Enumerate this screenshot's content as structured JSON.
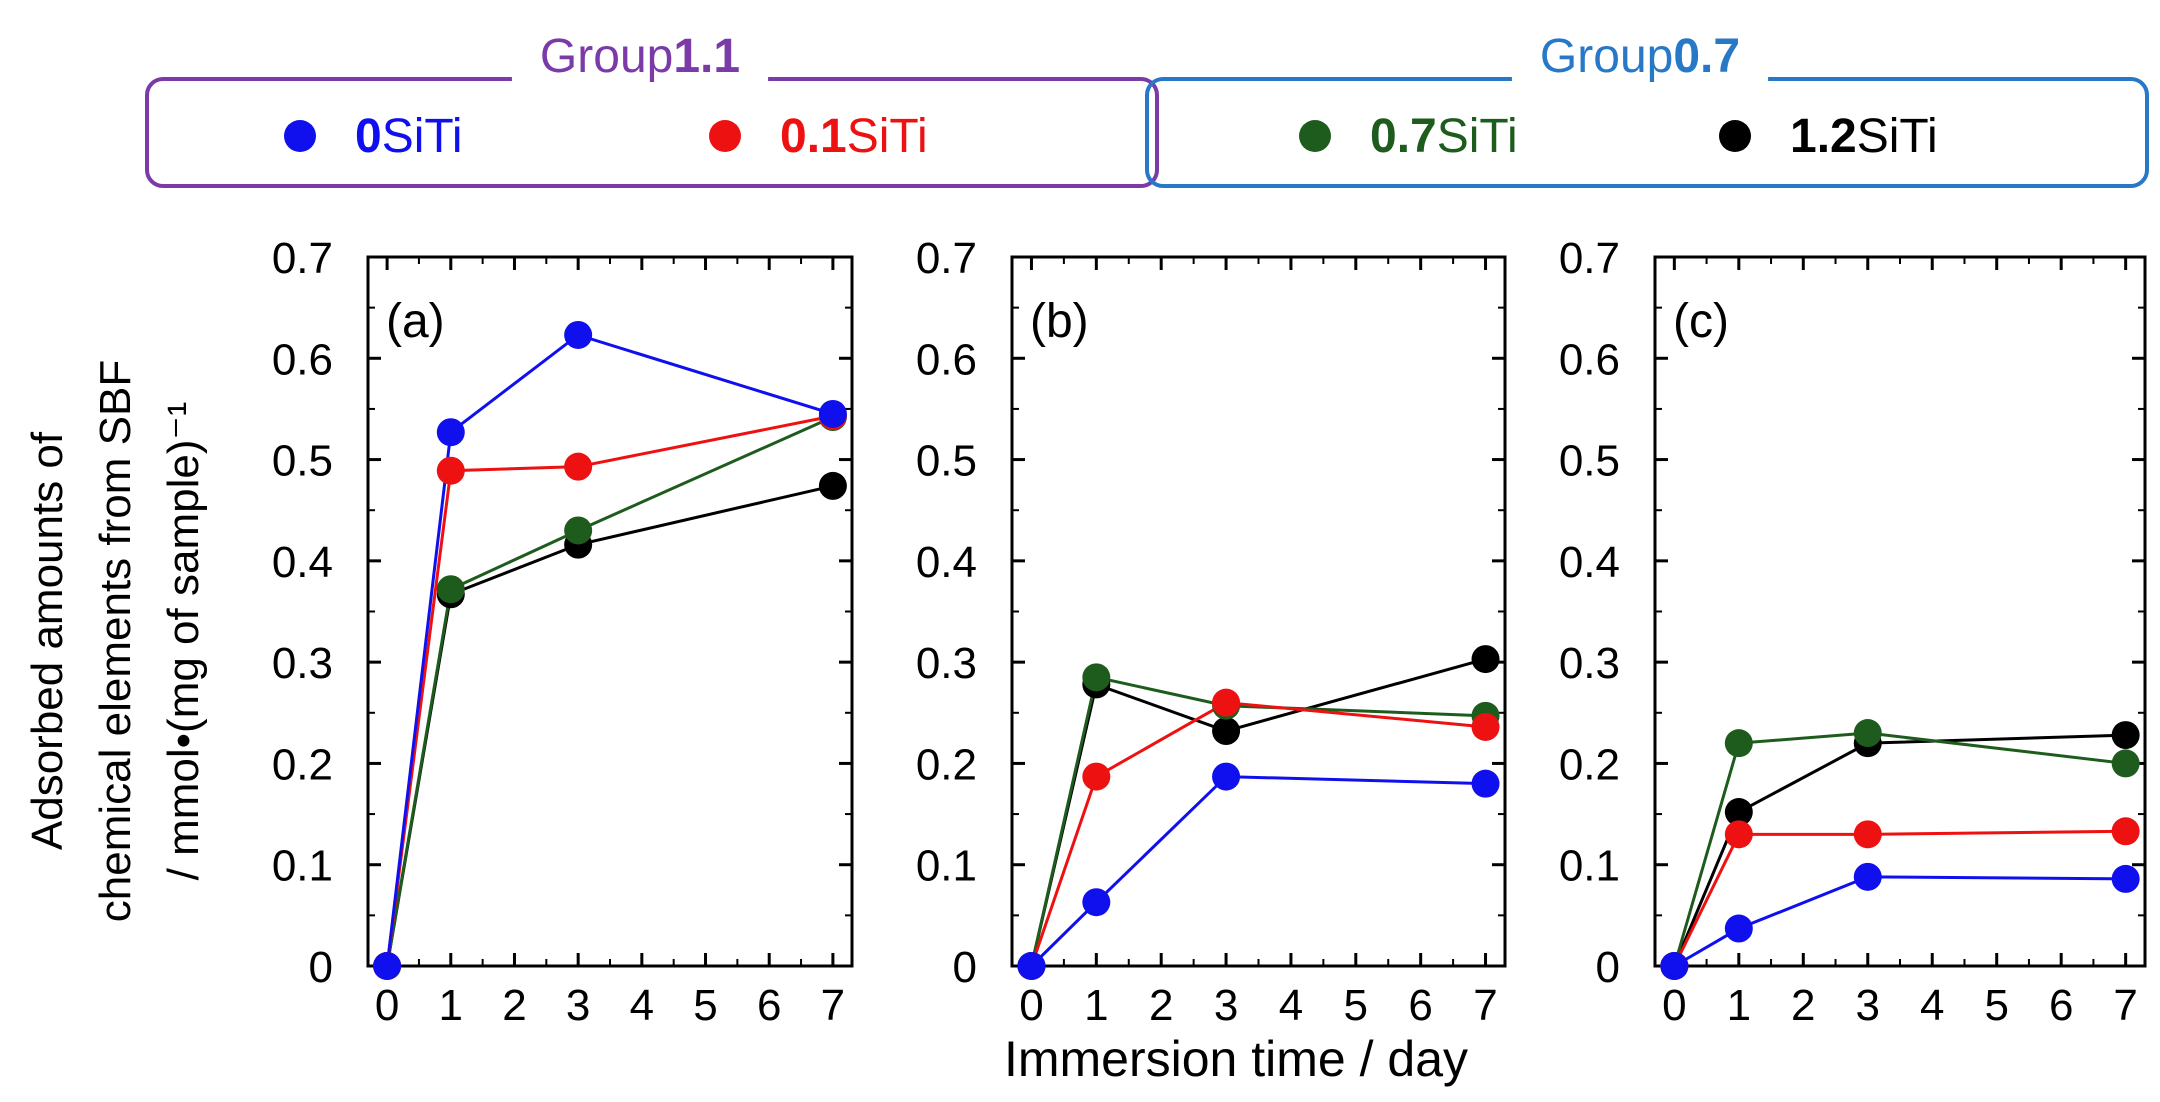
{
  "legend": {
    "groups": [
      {
        "title_prefix": "Group",
        "title_bold": "1.1",
        "color": "#7a3aa8",
        "entries": [
          {
            "series": "0SiTi",
            "bold": "0",
            "rest": "SiTi",
            "color": "#1010ee"
          },
          {
            "series": "0.1SiTi",
            "bold": "0.1",
            "rest": "SiTi",
            "color": "#ee1111"
          }
        ]
      },
      {
        "title_prefix": "Group",
        "title_bold": "0.7",
        "color": "#2878c8",
        "entries": [
          {
            "series": "0.7SiTi",
            "bold": "0.7",
            "rest": "SiTi",
            "color": "#1e5c1e"
          },
          {
            "series": "1.2SiTi",
            "bold": "1.2",
            "rest": "SiTi",
            "color": "#000000"
          }
        ]
      }
    ]
  },
  "colors": {
    "0SiTi": "#1010ee",
    "0.1SiTi": "#ee1111",
    "0.7SiTi": "#1e5c1e",
    "1.2SiTi": "#000000"
  },
  "chart_data": [
    {
      "type": "line",
      "panel_label": "(a)",
      "x": [
        0,
        1,
        3,
        7
      ],
      "xlim": [
        -0.3,
        7.3
      ],
      "ylim": [
        0,
        0.7
      ],
      "xticks": [
        "0",
        "1",
        "2",
        "3",
        "4",
        "5",
        "6",
        "7"
      ],
      "yticks": [
        "0",
        "0.1",
        "0.2",
        "0.3",
        "0.4",
        "0.5",
        "0.6",
        "0.7"
      ],
      "ylabel_line1": "Adsorbed amounts of",
      "ylabel_line2": "chemical elements from SBF",
      "ylabel_line3": "/ mmol•(mg of sample)⁻¹",
      "series": [
        {
          "name": "0SiTi",
          "values": [
            0,
            0.527,
            0.623,
            0.545
          ]
        },
        {
          "name": "0.1SiTi",
          "values": [
            0,
            0.489,
            0.493,
            0.543
          ]
        },
        {
          "name": "0.7SiTi",
          "values": [
            0,
            0.372,
            0.43,
            0.542
          ]
        },
        {
          "name": "1.2SiTi",
          "values": [
            0,
            0.367,
            0.416,
            0.474
          ]
        }
      ]
    },
    {
      "type": "line",
      "panel_label": "(b)",
      "x": [
        0,
        1,
        3,
        7
      ],
      "xlim": [
        -0.3,
        7.3
      ],
      "ylim": [
        0,
        0.7
      ],
      "xticks": [
        "0",
        "1",
        "2",
        "3",
        "4",
        "5",
        "6",
        "7"
      ],
      "yticks": [
        "0",
        "0.1",
        "0.2",
        "0.3",
        "0.4",
        "0.5",
        "0.6",
        "0.7"
      ],
      "xlabel": "Immersion time / day",
      "series": [
        {
          "name": "0SiTi",
          "values": [
            0,
            0.063,
            0.187,
            0.18
          ]
        },
        {
          "name": "0.1SiTi",
          "values": [
            0,
            0.187,
            0.26,
            0.236
          ]
        },
        {
          "name": "0.7SiTi",
          "values": [
            0,
            0.285,
            0.257,
            0.247
          ]
        },
        {
          "name": "1.2SiTi",
          "values": [
            0,
            0.278,
            0.232,
            0.303
          ]
        }
      ]
    },
    {
      "type": "line",
      "panel_label": "(c)",
      "x": [
        0,
        1,
        3,
        7
      ],
      "xlim": [
        -0.3,
        7.3
      ],
      "ylim": [
        0,
        0.7
      ],
      "xticks": [
        "0",
        "1",
        "2",
        "3",
        "4",
        "5",
        "6",
        "7"
      ],
      "yticks": [
        "0",
        "0.1",
        "0.2",
        "0.3",
        "0.4",
        "0.5",
        "0.6",
        "0.7"
      ],
      "series": [
        {
          "name": "0SiTi",
          "values": [
            0,
            0.037,
            0.088,
            0.086
          ]
        },
        {
          "name": "0.1SiTi",
          "values": [
            0,
            0.13,
            0.13,
            0.133
          ]
        },
        {
          "name": "0.7SiTi",
          "values": [
            0,
            0.22,
            0.23,
            0.2
          ]
        },
        {
          "name": "1.2SiTi",
          "values": [
            0,
            0.152,
            0.22,
            0.228
          ]
        }
      ]
    }
  ]
}
